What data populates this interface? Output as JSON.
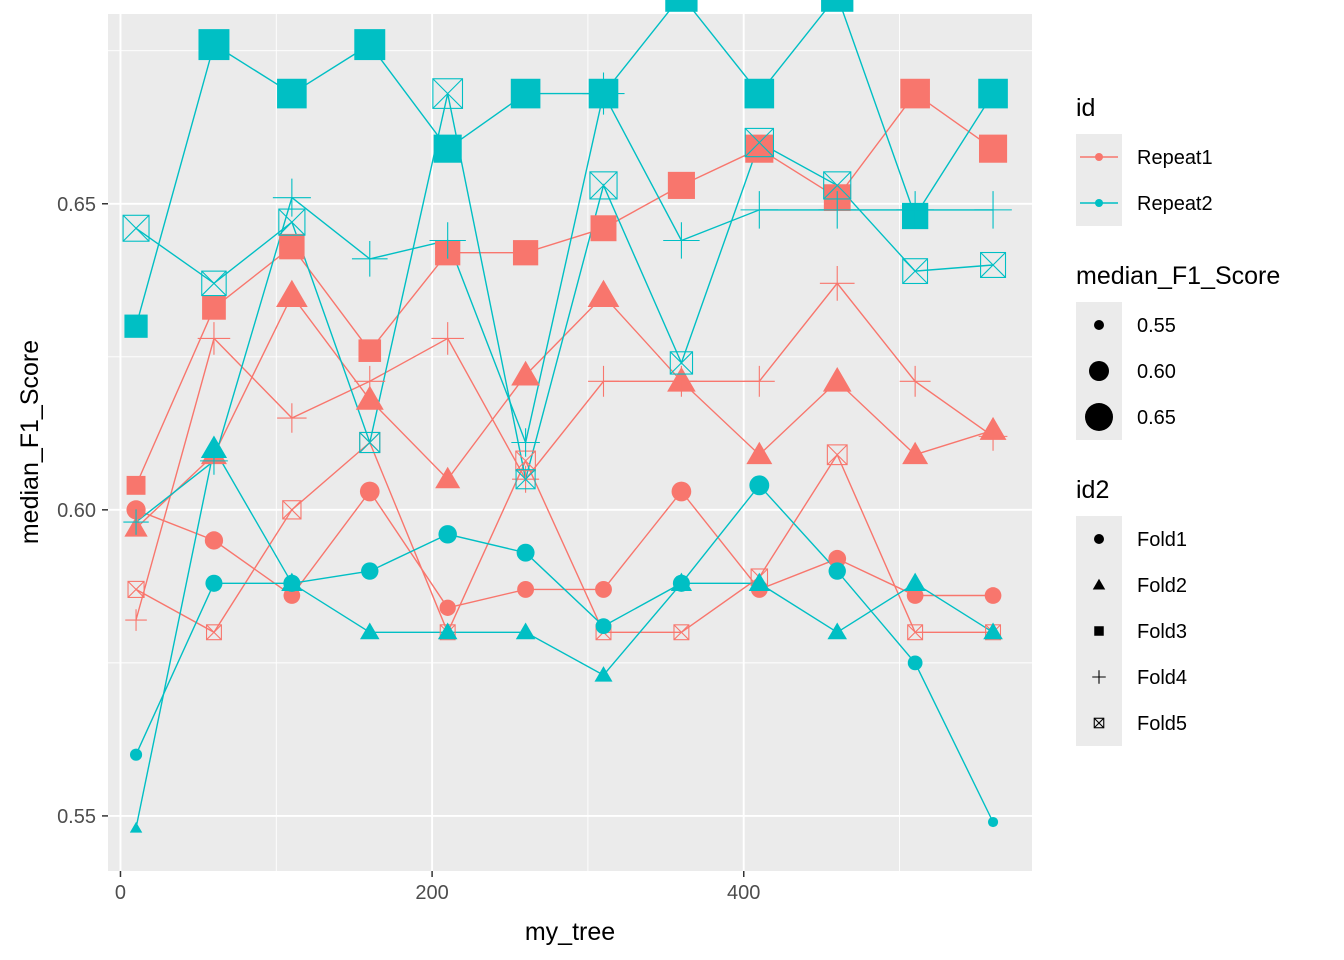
{
  "chart_data": {
    "type": "line",
    "title": "",
    "xlabel": "my_tree",
    "ylabel": "median_F1_Score",
    "xlim": [
      -8,
      585
    ],
    "ylim": [
      0.541,
      0.681
    ],
    "x_ticks": [
      0,
      200,
      400
    ],
    "x_tick_labels": [
      "0",
      "200",
      "400"
    ],
    "y_ticks": [
      0.55,
      0.6,
      0.65
    ],
    "y_tick_labels": [
      "0.55",
      "0.60",
      "0.65"
    ],
    "grid": true,
    "legend_position": "right",
    "x": [
      10,
      60,
      110,
      160,
      210,
      260,
      310,
      360,
      410,
      460,
      510,
      560
    ],
    "colors": {
      "Repeat1": "#F8766D",
      "Repeat2": "#00BFC4"
    },
    "shape_types": {
      "Fold1": "circle",
      "Fold2": "triangle",
      "Fold3": "square",
      "Fold4": "plus",
      "Fold5": "boxx"
    },
    "series": [
      {
        "id": "Repeat1",
        "id2": "Fold1",
        "values": [
          0.6,
          0.595,
          0.586,
          0.603,
          0.584,
          0.587,
          0.587,
          0.603,
          0.587,
          0.592,
          0.586,
          0.586
        ]
      },
      {
        "id": "Repeat1",
        "id2": "Fold2",
        "values": [
          0.597,
          0.609,
          0.635,
          0.618,
          0.605,
          0.622,
          0.635,
          0.621,
          0.609,
          0.621,
          0.609,
          0.613
        ]
      },
      {
        "id": "Repeat1",
        "id2": "Fold3",
        "values": [
          0.604,
          0.633,
          0.643,
          0.626,
          0.642,
          0.642,
          0.646,
          0.653,
          0.659,
          0.651,
          0.668,
          0.659
        ]
      },
      {
        "id": "Repeat1",
        "id2": "Fold4",
        "values": [
          0.582,
          0.628,
          0.615,
          0.621,
          0.628,
          0.605,
          0.621,
          0.621,
          0.621,
          0.637,
          0.621,
          0.612
        ]
      },
      {
        "id": "Repeat1",
        "id2": "Fold5",
        "values": [
          0.587,
          0.58,
          0.6,
          0.611,
          0.58,
          0.608,
          0.58,
          0.58,
          0.589,
          0.609,
          0.58,
          0.58
        ]
      },
      {
        "id": "Repeat2",
        "id2": "Fold1",
        "values": [
          0.56,
          0.588,
          0.588,
          0.59,
          0.596,
          0.593,
          0.581,
          0.588,
          0.604,
          0.59,
          0.575,
          0.549
        ]
      },
      {
        "id": "Repeat2",
        "id2": "Fold2",
        "values": [
          0.548,
          0.61,
          0.588,
          0.58,
          0.58,
          0.58,
          0.573,
          0.588,
          0.588,
          0.58,
          0.588,
          0.58
        ]
      },
      {
        "id": "Repeat2",
        "id2": "Fold3",
        "values": [
          0.63,
          0.676,
          0.668,
          0.676,
          0.659,
          0.668,
          0.668,
          0.684,
          0.668,
          0.684,
          0.648,
          0.668
        ]
      },
      {
        "id": "Repeat2",
        "id2": "Fold4",
        "values": [
          0.598,
          0.608,
          0.651,
          0.641,
          0.644,
          0.611,
          0.668,
          0.644,
          0.649,
          0.649,
          0.649,
          0.649
        ]
      },
      {
        "id": "Repeat2",
        "id2": "Fold5",
        "values": [
          0.646,
          0.637,
          0.647,
          0.611,
          0.668,
          0.605,
          0.653,
          0.624,
          0.66,
          0.653,
          0.639,
          0.64
        ]
      }
    ],
    "legends": [
      {
        "title": "id",
        "kind": "color",
        "items": [
          {
            "label": "Repeat1",
            "color": "#F8766D"
          },
          {
            "label": "Repeat2",
            "color": "#00BFC4"
          }
        ]
      },
      {
        "title": "median_F1_Score",
        "kind": "size",
        "items": [
          {
            "label": "0.55",
            "value": 0.55
          },
          {
            "label": "0.60",
            "value": 0.6
          },
          {
            "label": "0.65",
            "value": 0.65
          }
        ]
      },
      {
        "title": "id2",
        "kind": "shape",
        "items": [
          {
            "label": "Fold1",
            "shape": "circle"
          },
          {
            "label": "Fold2",
            "shape": "triangle"
          },
          {
            "label": "Fold3",
            "shape": "square"
          },
          {
            "label": "Fold4",
            "shape": "plus"
          },
          {
            "label": "Fold5",
            "shape": "boxx"
          }
        ]
      }
    ]
  }
}
